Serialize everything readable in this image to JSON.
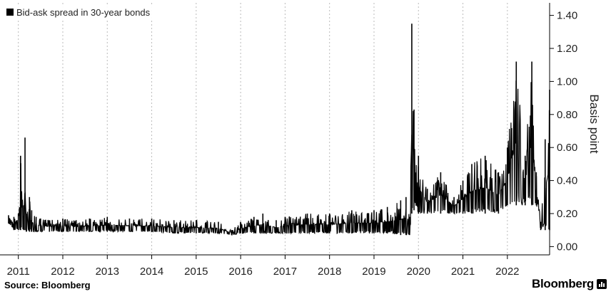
{
  "chart_data": {
    "type": "line",
    "title": "",
    "legend": {
      "label": "Bid-ask spread in 30-year bonds",
      "placement": "top-left"
    },
    "ylabel": "Basis point",
    "ylim": [
      -0.05,
      1.45
    ],
    "xlim": [
      2010.78,
      2022.95
    ],
    "y_ticks": [
      "1.40",
      "1.20",
      "1.00",
      "0.80",
      "0.60",
      "0.40",
      "0.20",
      "0.00"
    ],
    "y_tick_values": [
      1.4,
      1.2,
      1.0,
      0.8,
      0.6,
      0.4,
      0.2,
      0.0
    ],
    "x_ticks": [
      "2011",
      "2012",
      "2013",
      "2014",
      "2015",
      "2016",
      "2017",
      "2018",
      "2019",
      "2020",
      "2021",
      "2022"
    ],
    "x_tick_values": [
      2011,
      2012,
      2013,
      2014,
      2015,
      2016,
      2017,
      2018,
      2019,
      2020,
      2021,
      2022
    ],
    "grid": "vertical-dashed",
    "y_axis_side": "right",
    "series": [
      {
        "name": "Bid-ask spread in 30-year bonds",
        "color": "#000000",
        "x": [
          2010.78,
          2010.9,
          2011.0,
          2011.05,
          2011.12,
          2011.15,
          2011.18,
          2011.25,
          2011.3,
          2011.4,
          2011.5,
          2011.7,
          2012.0,
          2012.3,
          2012.6,
          2013.0,
          2013.5,
          2014.0,
          2014.5,
          2015.0,
          2015.5,
          2015.8,
          2016.0,
          2016.3,
          2016.5,
          2016.8,
          2017.0,
          2017.5,
          2018.0,
          2018.5,
          2019.0,
          2019.3,
          2019.6,
          2019.72,
          2019.8,
          2019.85,
          2019.9,
          2020.0,
          2020.2,
          2020.5,
          2020.8,
          2021.0,
          2021.2,
          2021.5,
          2021.8,
          2022.0,
          2022.2,
          2022.4,
          2022.55,
          2022.65,
          2022.75,
          2022.85,
          2022.95
        ],
        "y": [
          0.19,
          0.18,
          0.2,
          0.55,
          0.25,
          0.66,
          0.2,
          0.3,
          0.22,
          0.18,
          0.17,
          0.16,
          0.17,
          0.16,
          0.17,
          0.18,
          0.17,
          0.17,
          0.16,
          0.16,
          0.15,
          0.1,
          0.15,
          0.18,
          0.2,
          0.16,
          0.18,
          0.2,
          0.2,
          0.22,
          0.22,
          0.24,
          0.28,
          0.3,
          0.18,
          1.35,
          0.83,
          0.55,
          0.35,
          0.45,
          0.3,
          0.4,
          0.5,
          0.55,
          0.45,
          0.6,
          1.12,
          0.55,
          1.12,
          0.45,
          0.15,
          0.65,
          0.95
        ],
        "range_low": [
          0.14,
          0.1,
          0.1,
          0.1,
          0.1,
          0.1,
          0.09,
          0.09,
          0.09,
          0.09,
          0.09,
          0.09,
          0.09,
          0.09,
          0.09,
          0.09,
          0.09,
          0.09,
          0.08,
          0.08,
          0.08,
          0.07,
          0.08,
          0.08,
          0.08,
          0.08,
          0.08,
          0.08,
          0.08,
          0.08,
          0.08,
          0.08,
          0.07,
          0.07,
          0.07,
          0.2,
          0.22,
          0.2,
          0.2,
          0.2,
          0.2,
          0.2,
          0.2,
          0.2,
          0.2,
          0.25,
          0.25,
          0.25,
          0.25,
          0.25,
          0.1,
          0.1,
          0.1
        ]
      }
    ]
  },
  "footer": {
    "source": "Source: Bloomberg",
    "brand": "Bloomberg"
  }
}
